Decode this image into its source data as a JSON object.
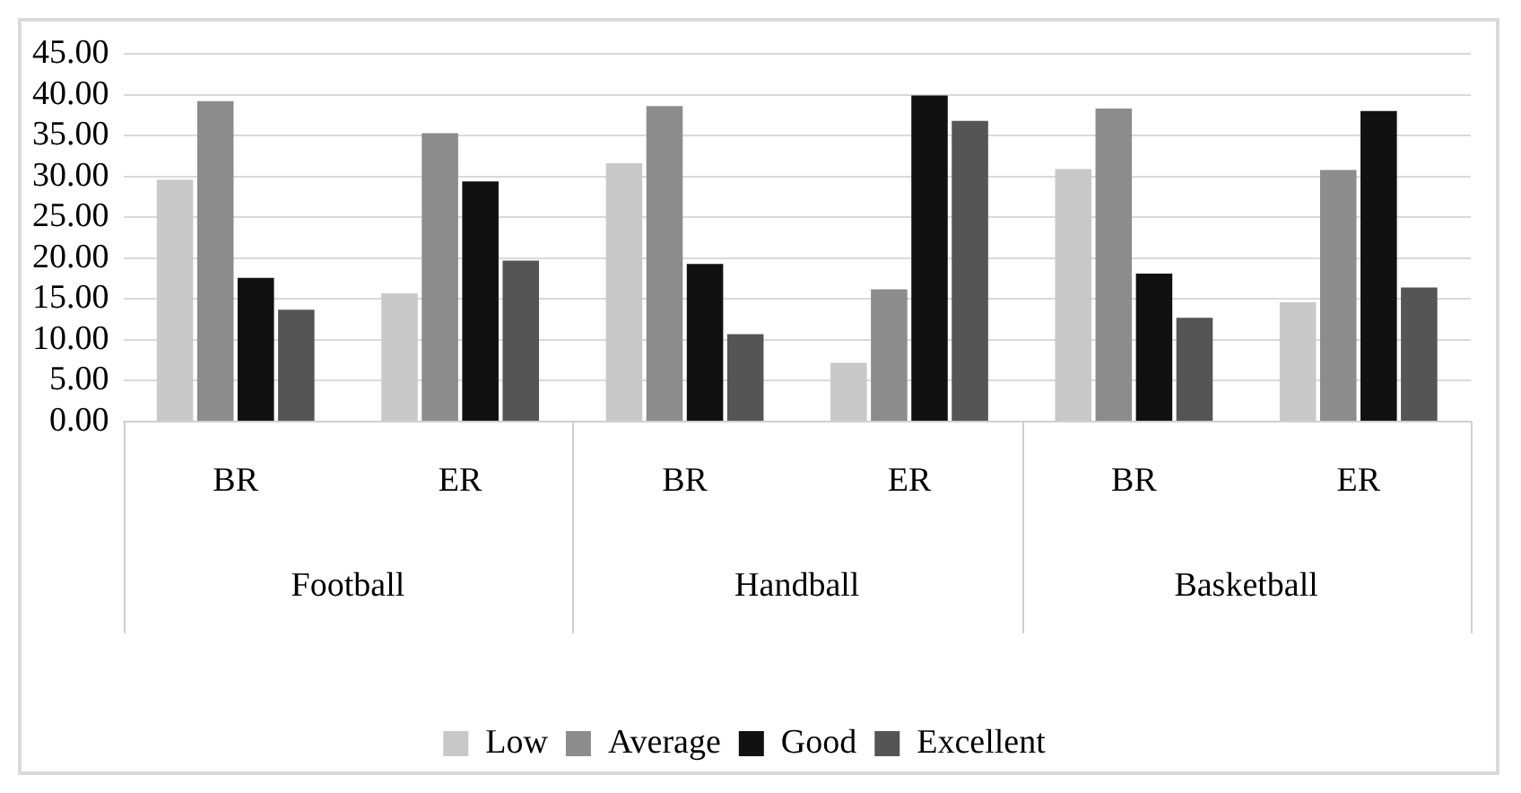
{
  "chart_data": {
    "type": "bar",
    "categories": [
      "BR",
      "ER",
      "BR",
      "ER",
      "BR",
      "ER"
    ],
    "annotations": [
      "Football",
      "Handball",
      "Basketball"
    ],
    "series": [
      {
        "name": "Low",
        "color": "#c8c8c8",
        "values": [
          29.6,
          15.7,
          31.6,
          7.2,
          30.9,
          14.6
        ]
      },
      {
        "name": "Average",
        "color": "#8c8c8c",
        "values": [
          39.2,
          35.3,
          38.6,
          16.2,
          38.3,
          30.8
        ]
      },
      {
        "name": "Good",
        "color": "#111111",
        "values": [
          17.6,
          29.4,
          19.3,
          39.9,
          18.1,
          38.0
        ]
      },
      {
        "name": "Excellent",
        "color": "#555555",
        "values": [
          13.7,
          19.7,
          10.7,
          36.8,
          12.7,
          16.4
        ]
      }
    ],
    "ylim": [
      0,
      45
    ],
    "yticks": [
      {
        "value": 0,
        "label": "0.00"
      },
      {
        "value": 5,
        "label": "5.00"
      },
      {
        "value": 10,
        "label": "10.00"
      },
      {
        "value": 15,
        "label": "15.00"
      },
      {
        "value": 20,
        "label": "20.00"
      },
      {
        "value": 25,
        "label": "25.00"
      },
      {
        "value": 30,
        "label": "30.00"
      },
      {
        "value": 35,
        "label": "35.00"
      },
      {
        "value": 40,
        "label": "40.00"
      },
      {
        "value": 45,
        "label": "45.00"
      }
    ],
    "grid": "y",
    "legend": "bottom"
  }
}
